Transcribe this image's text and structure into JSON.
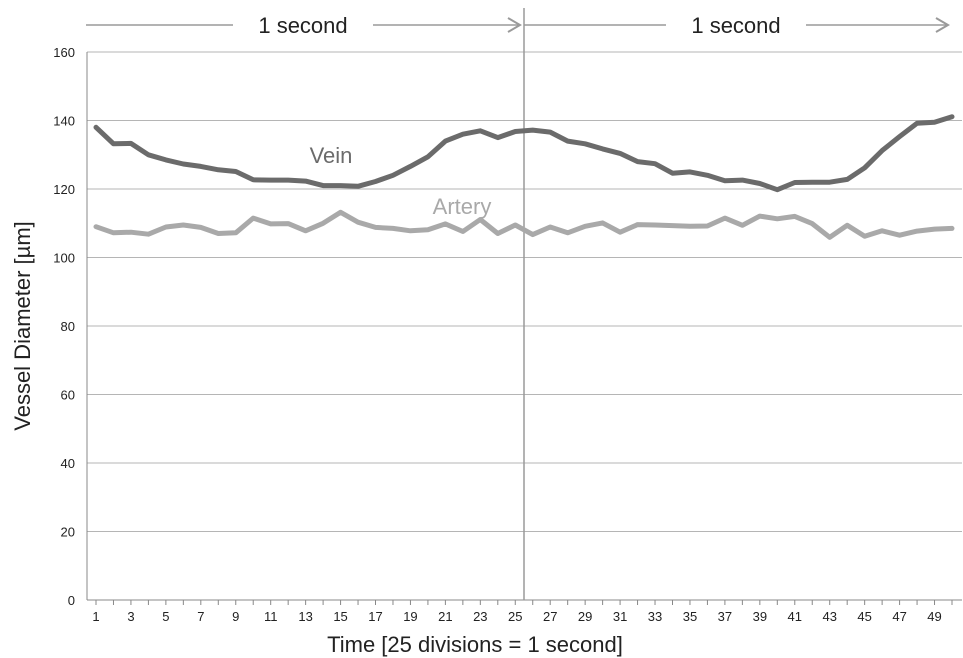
{
  "chart_data": {
    "type": "line",
    "xlabel": "Time [25 divisions = 1 second]",
    "ylabel": "Vessel Diameter [µm]",
    "ylim": [
      0,
      160
    ],
    "yticks": [
      0,
      20,
      40,
      60,
      80,
      100,
      120,
      140,
      160
    ],
    "xlim": [
      1,
      50
    ],
    "xticks": [
      1,
      3,
      5,
      7,
      9,
      11,
      13,
      15,
      17,
      19,
      21,
      23,
      25,
      27,
      29,
      31,
      33,
      35,
      37,
      39,
      41,
      43,
      45,
      47,
      49
    ],
    "grid": true,
    "x": [
      1,
      2,
      3,
      4,
      5,
      6,
      7,
      8,
      9,
      10,
      11,
      12,
      13,
      14,
      15,
      16,
      17,
      18,
      19,
      20,
      21,
      22,
      23,
      24,
      25,
      26,
      27,
      28,
      29,
      30,
      31,
      32,
      33,
      34,
      35,
      36,
      37,
      38,
      39,
      40,
      41,
      42,
      43,
      44,
      45,
      46,
      47,
      48,
      49,
      50
    ],
    "series": [
      {
        "name": "Vein",
        "color": "#6b6b6b",
        "values": [
          138,
          133.2,
          133.3,
          130,
          128.5,
          127.3,
          126.6,
          125.6,
          125.1,
          122.7,
          122.6,
          122.6,
          122.3,
          121,
          121,
          120.8,
          122.2,
          124,
          126.6,
          129.4,
          134,
          136,
          137,
          135,
          136.8,
          137.2,
          136.6,
          134,
          133.2,
          131.7,
          130.4,
          128,
          127.4,
          124.6,
          125,
          124,
          122.4,
          122.6,
          121.6,
          119.8,
          121.9,
          122,
          122,
          122.8,
          126.2,
          131.2,
          135.3,
          139.2,
          139.5,
          141.1
        ]
      },
      {
        "name": "Artery",
        "color": "#a9a9a9",
        "values": [
          109,
          107.2,
          107.4,
          106.8,
          108.9,
          109.5,
          108.8,
          107,
          107.2,
          111.5,
          109.8,
          109.9,
          107.8,
          110,
          113.2,
          110.3,
          108.8,
          108.5,
          107.8,
          108.1,
          109.8,
          107.6,
          111.1,
          107,
          109.5,
          106.7,
          108.9,
          107.2,
          109.1,
          110.1,
          107.4,
          109.6,
          109.5,
          109.3,
          109.1,
          109.2,
          111.5,
          109.4,
          112.1,
          111.3,
          112,
          109.9,
          105.9,
          109.4,
          106.2,
          107.8,
          106.5,
          107.7,
          108.3,
          108.5
        ]
      }
    ],
    "annotations": [
      {
        "text": "1 second",
        "from_x": 1,
        "to_x": 25.5
      },
      {
        "text": "1 second",
        "from_x": 25.5,
        "to_x": 50
      }
    ],
    "divider_x": 25.5
  }
}
